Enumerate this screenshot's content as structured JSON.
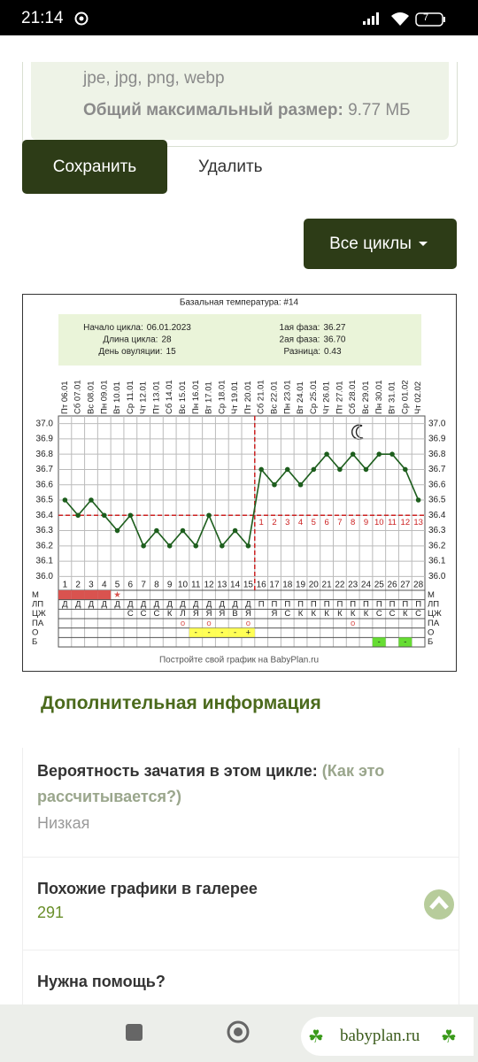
{
  "status_bar": {
    "time": "21:14",
    "battery": "7"
  },
  "upload": {
    "formats": "jpe, jpg, png, webp",
    "max_size_label": "Общий максимальный размер:",
    "max_size_value": "9.77 МБ"
  },
  "buttons": {
    "save": "Сохранить",
    "delete": "Удалить",
    "all_cycles": "Все циклы"
  },
  "chart_data": {
    "type": "line",
    "title": "Базальная температура: #14",
    "info": [
      {
        "label": "Начало цикла:",
        "value": "06.01.2023"
      },
      {
        "label": "Длина цикла:",
        "value": 28
      },
      {
        "label": "День овуляции:",
        "value": 15
      },
      {
        "label": "1ая фаза:",
        "value": "36.27"
      },
      {
        "label": "2ая фаза:",
        "value": "36.70"
      },
      {
        "label": "Разница:",
        "value": "0.43"
      }
    ],
    "x": [
      1,
      2,
      3,
      4,
      5,
      6,
      7,
      8,
      9,
      10,
      11,
      12,
      13,
      14,
      15,
      16,
      17,
      18,
      19,
      20,
      21,
      22,
      23,
      24,
      25,
      26,
      27,
      28
    ],
    "xlim": [
      0.5,
      28.5
    ],
    "dates": [
      "Пт 06.01",
      "Сб 07.01",
      "Вс 08.01",
      "Пн 09.01",
      "Вт 10.01",
      "Ср 11.01",
      "Чт 12.01",
      "Пт 13.01",
      "Сб 14.01",
      "Вс 15.01",
      "Пн 16.01",
      "Вт 17.01",
      "Ср 18.01",
      "Чт 19.01",
      "Пт 20.01",
      "Сб 21.01",
      "Вс 22.01",
      "Пн 23.01",
      "Вт 24.01",
      "Ср 25.01",
      "Чт 26.01",
      "Пт 27.01",
      "Сб 28.01",
      "Вс 29.01",
      "Пн 30.01",
      "Вт 31.01",
      "Ср 01.02",
      "Чт 02.02"
    ],
    "values": [
      36.5,
      36.4,
      36.5,
      36.4,
      36.3,
      36.4,
      36.2,
      36.3,
      36.2,
      36.3,
      36.2,
      36.4,
      36.2,
      36.3,
      36.2,
      36.7,
      36.6,
      36.7,
      36.6,
      36.7,
      36.8,
      36.7,
      36.8,
      36.7,
      36.8,
      36.8,
      36.7,
      36.5
    ],
    "color": "#1d5e1d",
    "cover_line": 36.4,
    "cover_line_color": "#cc2222",
    "ylim": [
      35.95,
      37.05
    ],
    "yticks": [
      {
        "value": 36,
        "label": "36.0"
      },
      36.1,
      36.2,
      36.3,
      36.4,
      36.5,
      36.6,
      36.7,
      36.8,
      36.9,
      {
        "value": 37,
        "label": "37.0"
      }
    ],
    "grid": true,
    "phase2_days": [
      1,
      2,
      3,
      4,
      5,
      6,
      7,
      8,
      9,
      10,
      11,
      12,
      13
    ],
    "table": [
      {
        "label": "М",
        "cells": [
          null,
          null,
          null,
          null,
          "★",
          null,
          null,
          null,
          null,
          null,
          null,
          null,
          null,
          null,
          null,
          null,
          null,
          null,
          null,
          null,
          null,
          null,
          null,
          null,
          null,
          null,
          null,
          null
        ],
        "highlight": [
          1,
          2,
          3,
          4
        ],
        "highlight_color": "#d9534f"
      },
      {
        "label": "ЛП",
        "cells": [
          "Д",
          "Д",
          "Д",
          "Д",
          "Д",
          "Д",
          "Д",
          "Д",
          "Д",
          "Д",
          "Д",
          "Д",
          "Д",
          "Д",
          "Д",
          "П",
          "П",
          "П",
          "П",
          "П",
          "П",
          "П",
          "П",
          "П",
          "П",
          "П",
          "П",
          "П"
        ]
      },
      {
        "label": "ЦЖ",
        "cells": [
          null,
          null,
          null,
          null,
          null,
          "С",
          "С",
          "С",
          "К",
          "Л",
          "Я",
          "Я",
          "Я",
          "В",
          "Я",
          null,
          "Я",
          "С",
          "К",
          "К",
          "К",
          "К",
          "К",
          "К",
          "С",
          "С",
          "К",
          "С"
        ]
      },
      {
        "label": "ПА",
        "cells": [
          null,
          null,
          null,
          null,
          null,
          null,
          null,
          null,
          null,
          "о",
          null,
          "о",
          null,
          null,
          "о",
          null,
          null,
          null,
          null,
          null,
          null,
          null,
          "о",
          null,
          null,
          null,
          null,
          null
        ]
      },
      {
        "label": "О",
        "cells": [
          null,
          null,
          null,
          null,
          null,
          null,
          null,
          null,
          null,
          null,
          "-",
          "-",
          "-",
          "-",
          "+",
          null,
          null,
          null,
          null,
          null,
          null,
          null,
          null,
          null,
          null,
          null,
          null,
          null
        ],
        "highlight": [
          11,
          12,
          13,
          14,
          15
        ],
        "highlight_color": "#ffff55"
      },
      {
        "label": "Б",
        "cells": [
          null,
          null,
          null,
          null,
          null,
          null,
          null,
          null,
          null,
          null,
          null,
          null,
          null,
          null,
          null,
          null,
          null,
          null,
          null,
          null,
          null,
          null,
          null,
          null,
          "-",
          null,
          "-",
          null
        ],
        "highlight": [
          25,
          27
        ],
        "highlight_color": "#66dd33"
      }
    ],
    "footer": "Постройте свой график на BabyPlan.ru"
  },
  "extra": {
    "heading": "Дополнительная информация",
    "items": [
      {
        "label": "Вероятность зачатия в этом цикле:",
        "link": "(Как это рассчитывается?)",
        "value": "Низкая"
      },
      {
        "label": "Похожие графики в галерее",
        "value": 291
      },
      {
        "label": "Нужна помощь?"
      }
    ]
  },
  "watermark": "babyplan.ru"
}
